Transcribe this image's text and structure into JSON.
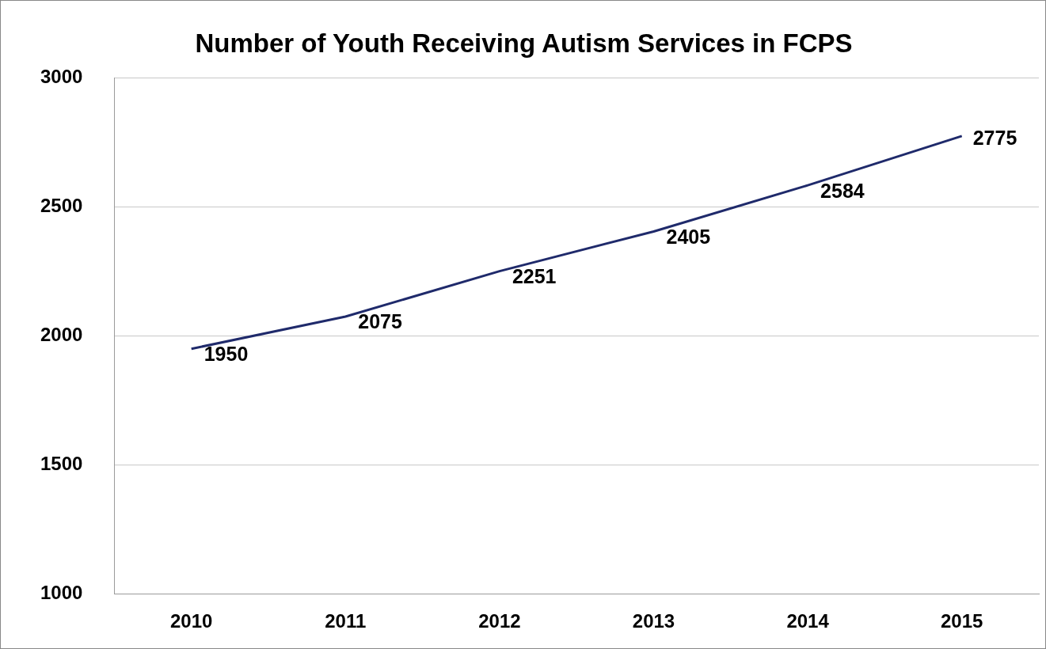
{
  "chart_data": {
    "type": "line",
    "title": "Number of Youth Receiving Autism Services in FCPS",
    "categories": [
      "2010",
      "2011",
      "2012",
      "2013",
      "2014",
      "2015"
    ],
    "series": [
      {
        "color": "#1f2a6b",
        "values": [
          1950,
          2075,
          2251,
          2405,
          2584,
          2775
        ]
      }
    ],
    "ylim": [
      1000,
      3000
    ],
    "yticks": [
      1000,
      1500,
      2000,
      2500,
      3000
    ],
    "grid": "y",
    "legend": false,
    "marker": "none",
    "line_style": "solid",
    "data_labels": true
  }
}
